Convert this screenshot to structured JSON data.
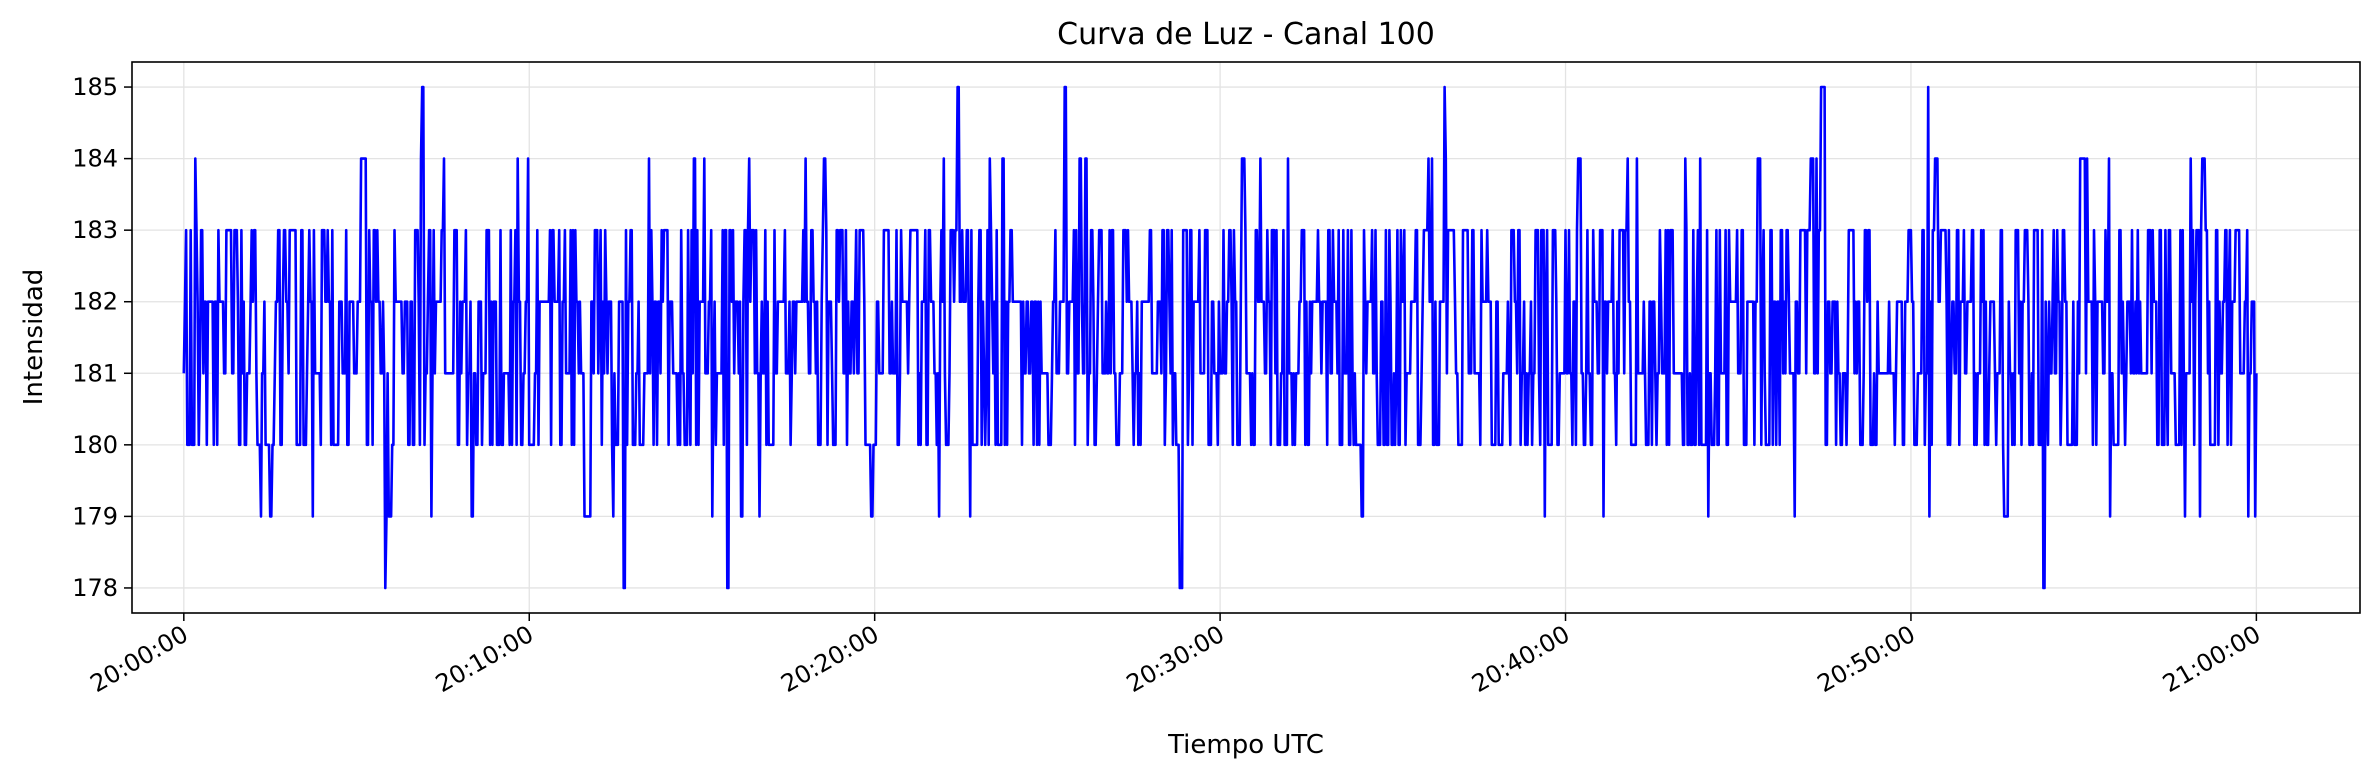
{
  "chart_data": {
    "type": "line",
    "title": "Curva de Luz - Canal 100",
    "xlabel": "Tiempo UTC",
    "ylabel": "Intensidad",
    "x_start": "20:00:00",
    "x_end": "21:00:00",
    "xlim": [
      "19:58:30",
      "21:03:00"
    ],
    "ylim": [
      177.65,
      185.35
    ],
    "x_ticks": [
      "20:00:00",
      "20:10:00",
      "20:20:00",
      "20:30:00",
      "20:40:00",
      "20:50:00",
      "21:00:00"
    ],
    "y_ticks": [
      178,
      179,
      180,
      181,
      182,
      183,
      184,
      185
    ],
    "grid": true,
    "legend": "none",
    "series": [
      {
        "color": "#0000ff",
        "y_min": 178,
        "y_max": 185,
        "typical_range": [
          180,
          183
        ],
        "marked_values": [
          {
            "time": "20:05:50",
            "value": 178
          },
          {
            "time": "20:06:55",
            "value": 185
          },
          {
            "time": "20:12:45",
            "value": 178
          },
          {
            "time": "20:15:45",
            "value": 178
          },
          {
            "time": "20:22:25",
            "value": 185
          },
          {
            "time": "20:25:30",
            "value": 185
          },
          {
            "time": "20:28:50",
            "value": 178
          },
          {
            "time": "20:36:30",
            "value": 185
          },
          {
            "time": "20:47:25",
            "value": 185
          },
          {
            "time": "20:50:30",
            "value": 185
          },
          {
            "time": "20:53:50",
            "value": 178
          },
          {
            "time": "21:00:00",
            "value": 181
          }
        ]
      }
    ]
  }
}
